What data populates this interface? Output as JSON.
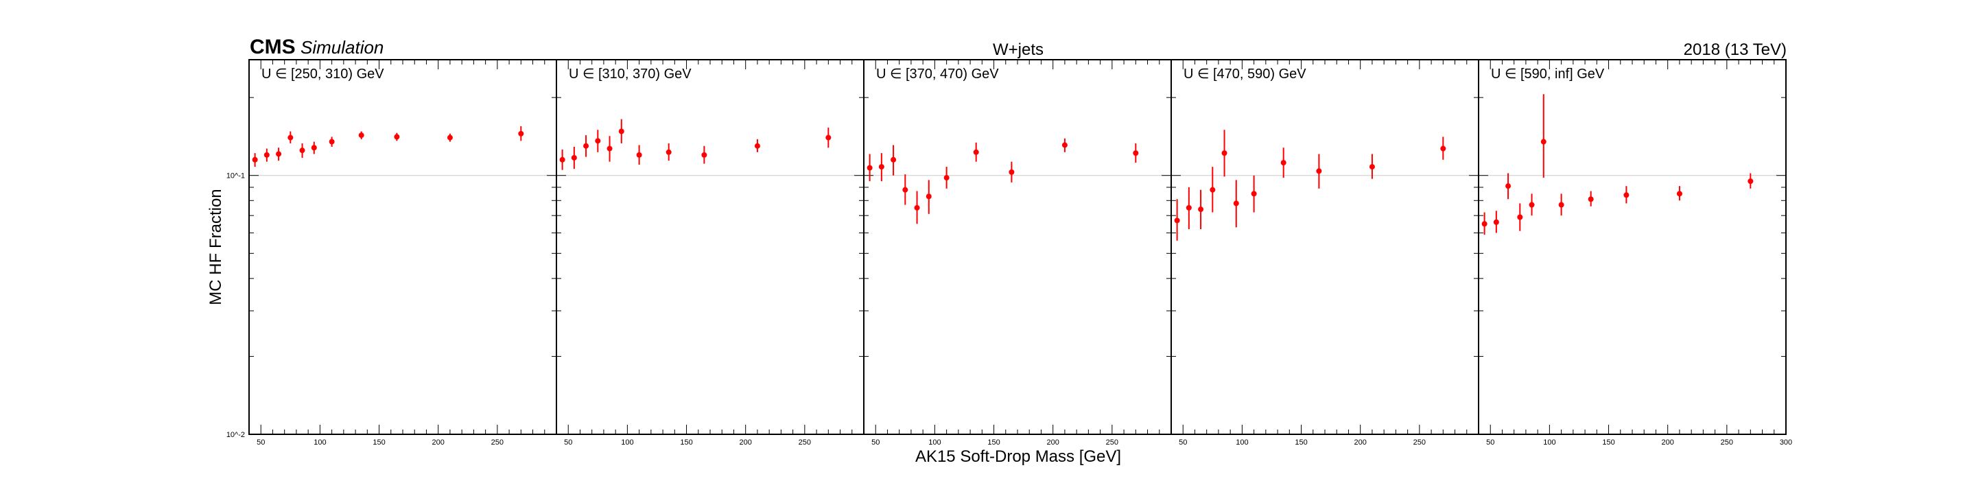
{
  "header": {
    "cms_label": "CMS",
    "cms_sublabel": "Simulation",
    "process": "W+jets",
    "lumi_label": "2018 (13 TeV)"
  },
  "axes": {
    "ylabel": "MC HF Fraction",
    "xlabel": "AK15 Soft-Drop Mass [GeV]",
    "ytick_labels": [
      "10^-1",
      "10^-2"
    ]
  },
  "colors": {
    "points": "#ff0000",
    "frame": "#000000",
    "reference_line": "#cccccc"
  },
  "chart_data": {
    "type": "scatter",
    "title": "W+jets",
    "xlabel": "AK15 Soft-Drop Mass [GeV]",
    "ylabel": "MC HF Fraction",
    "yscale": "log",
    "ylim": [
      0.01,
      0.28
    ],
    "xlim": [
      40,
      300
    ],
    "reference_y": 0.1,
    "panels": [
      {
        "label": "U ∈ [250, 310) GeV",
        "xticks": [
          50,
          100,
          150,
          200,
          250
        ],
        "x": [
          45,
          55,
          65,
          75,
          85,
          95,
          110,
          135,
          165,
          210,
          270
        ],
        "y": [
          0.115,
          0.12,
          0.121,
          0.14,
          0.125,
          0.128,
          0.135,
          0.143,
          0.141,
          0.14,
          0.145
        ],
        "ylow": [
          0.108,
          0.113,
          0.114,
          0.133,
          0.117,
          0.121,
          0.129,
          0.138,
          0.136,
          0.135,
          0.136
        ],
        "yhigh": [
          0.122,
          0.127,
          0.128,
          0.148,
          0.133,
          0.135,
          0.141,
          0.148,
          0.146,
          0.145,
          0.155
        ]
      },
      {
        "label": "U ∈ [310, 370) GeV",
        "xticks": [
          50,
          100,
          150,
          200,
          250
        ],
        "x": [
          45,
          55,
          65,
          75,
          85,
          95,
          110,
          135,
          165,
          210,
          270
        ],
        "y": [
          0.115,
          0.117,
          0.13,
          0.136,
          0.127,
          0.148,
          0.12,
          0.123,
          0.12,
          0.13,
          0.14
        ],
        "ylow": [
          0.105,
          0.106,
          0.118,
          0.123,
          0.113,
          0.133,
          0.11,
          0.114,
          0.111,
          0.123,
          0.128
        ],
        "yhigh": [
          0.126,
          0.129,
          0.143,
          0.15,
          0.142,
          0.165,
          0.131,
          0.133,
          0.13,
          0.138,
          0.153
        ]
      },
      {
        "label": "U ∈ [370, 470) GeV",
        "xticks": [
          50,
          100,
          150,
          200,
          250
        ],
        "x": [
          45,
          55,
          65,
          75,
          85,
          95,
          110,
          135,
          165,
          210,
          270
        ],
        "y": [
          0.107,
          0.108,
          0.115,
          0.088,
          0.075,
          0.083,
          0.098,
          0.123,
          0.103,
          0.131,
          0.122
        ],
        "ylow": [
          0.095,
          0.095,
          0.1,
          0.077,
          0.065,
          0.071,
          0.089,
          0.113,
          0.094,
          0.123,
          0.112
        ],
        "yhigh": [
          0.121,
          0.122,
          0.131,
          0.101,
          0.087,
          0.096,
          0.108,
          0.134,
          0.113,
          0.139,
          0.133
        ]
      },
      {
        "label": "U ∈ [470, 590) GeV",
        "xticks": [
          50,
          100,
          150,
          200,
          250
        ],
        "x": [
          45,
          55,
          65,
          75,
          85,
          95,
          110,
          135,
          165,
          210,
          270
        ],
        "y": [
          0.067,
          0.075,
          0.074,
          0.088,
          0.122,
          0.078,
          0.085,
          0.112,
          0.104,
          0.108,
          0.127
        ],
        "ylow": [
          0.056,
          0.062,
          0.062,
          0.072,
          0.099,
          0.063,
          0.072,
          0.098,
          0.089,
          0.097,
          0.115
        ],
        "yhigh": [
          0.081,
          0.09,
          0.088,
          0.108,
          0.15,
          0.096,
          0.1,
          0.128,
          0.121,
          0.121,
          0.141
        ]
      },
      {
        "label": "U ∈ [590, inf] GeV",
        "xticks": [
          50,
          100,
          150,
          200,
          250,
          300
        ],
        "x": [
          45,
          55,
          65,
          75,
          85,
          95,
          110,
          135,
          165,
          210,
          270
        ],
        "y": [
          0.065,
          0.066,
          0.091,
          0.069,
          0.077,
          0.135,
          0.077,
          0.081,
          0.084,
          0.085,
          0.095
        ],
        "ylow": [
          0.059,
          0.06,
          0.081,
          0.061,
          0.07,
          0.098,
          0.07,
          0.076,
          0.078,
          0.08,
          0.089
        ],
        "yhigh": [
          0.072,
          0.073,
          0.102,
          0.078,
          0.085,
          0.206,
          0.085,
          0.087,
          0.091,
          0.091,
          0.102
        ]
      }
    ]
  }
}
